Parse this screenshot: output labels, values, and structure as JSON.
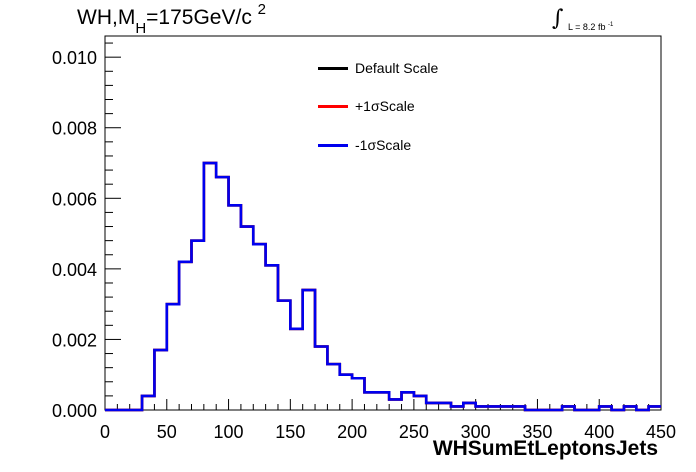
{
  "chart_data": {
    "type": "line",
    "title": {
      "main": "WH,M",
      "sub": "H",
      "mid": "=175GeV/c",
      "sup": "2"
    },
    "lumi": {
      "integral": "∫",
      "text": "L = 8.2 fb",
      "sup": "-1"
    },
    "xlabel": "WHSumEtLeptonsJets",
    "ylabel": "",
    "xlim": [
      0,
      450
    ],
    "ylim": [
      0,
      0.0106
    ],
    "xticks": [
      0,
      50,
      100,
      150,
      200,
      250,
      300,
      350,
      400,
      450
    ],
    "xtick_labels": [
      "0",
      "50",
      "100",
      "150",
      "200",
      "250",
      "300",
      "350",
      "400",
      "450"
    ],
    "yticks": [
      0,
      0.002,
      0.004,
      0.006,
      0.008,
      0.01
    ],
    "ytick_labels": [
      "0.000",
      "0.002",
      "0.004",
      "0.006",
      "0.008",
      "0.010"
    ],
    "grid": false,
    "legend_placement": "top-center",
    "bin_width": 10,
    "bin_start": 0,
    "series": [
      {
        "name": "Default Scale",
        "color": "#000000",
        "values": [
          0,
          0,
          0,
          0.0004,
          0.0017,
          0.003,
          0.0042,
          0.0048,
          0.007,
          0.0066,
          0.0058,
          0.0052,
          0.0047,
          0.0041,
          0.0031,
          0.0023,
          0.0034,
          0.0018,
          0.0013,
          0.001,
          0.0009,
          0.0005,
          0.0005,
          0.0003,
          0.0005,
          0.0004,
          0.0002,
          0.0002,
          0.0001,
          0.0002,
          0.0001,
          0.0001,
          0.0001,
          0.0001,
          0.0,
          0.0,
          0.0,
          0.0001,
          0.0,
          0.0,
          0.0001,
          0.0,
          0.0001,
          0.0,
          0.0001,
          0.0,
          0.0,
          0.0,
          0.0,
          0.0,
          0.0,
          0.0,
          0.0,
          0.0,
          0.0,
          0.0,
          0.0,
          0.0,
          0.0
        ]
      },
      {
        "name": "+1σScale",
        "color": "#ff0000",
        "values": [
          0,
          0,
          0,
          0.0004,
          0.0017,
          0.003,
          0.0042,
          0.0048,
          0.007,
          0.0066,
          0.0058,
          0.0052,
          0.0047,
          0.0041,
          0.0031,
          0.0023,
          0.0034,
          0.0018,
          0.0013,
          0.001,
          0.0009,
          0.0005,
          0.0005,
          0.0003,
          0.0005,
          0.0004,
          0.0002,
          0.0002,
          0.0001,
          0.0002,
          0.0001,
          0.0001,
          0.0001,
          0.0001,
          0.0,
          0.0,
          0.0,
          0.0001,
          0.0,
          0.0,
          0.0001,
          0.0,
          0.0001,
          0.0,
          0.0001,
          0.0,
          0.0,
          0.0,
          0.0,
          0.0,
          0.0,
          0.0,
          0.0,
          0.0,
          0.0,
          0.0,
          0.0,
          0.0,
          0.0
        ]
      },
      {
        "name": "-1σScale",
        "color": "#0000ee",
        "values": [
          0,
          0,
          0,
          0.0004,
          0.0017,
          0.003,
          0.0042,
          0.0048,
          0.007,
          0.0066,
          0.0058,
          0.0052,
          0.0047,
          0.0041,
          0.0031,
          0.0023,
          0.0034,
          0.0018,
          0.0013,
          0.001,
          0.0009,
          0.0005,
          0.0005,
          0.0003,
          0.0005,
          0.0004,
          0.0002,
          0.0002,
          0.0001,
          0.0002,
          0.0001,
          0.0001,
          0.0001,
          0.0001,
          0.0,
          0.0,
          0.0,
          0.0001,
          0.0,
          0.0,
          0.0001,
          0.0,
          0.0001,
          0.0,
          0.0001,
          0.0,
          0.0,
          0.0,
          0.0,
          0.0,
          0.0,
          0.0,
          0.0,
          0.0,
          0.0,
          0.0,
          0.0,
          0.0,
          0.0
        ]
      }
    ]
  }
}
